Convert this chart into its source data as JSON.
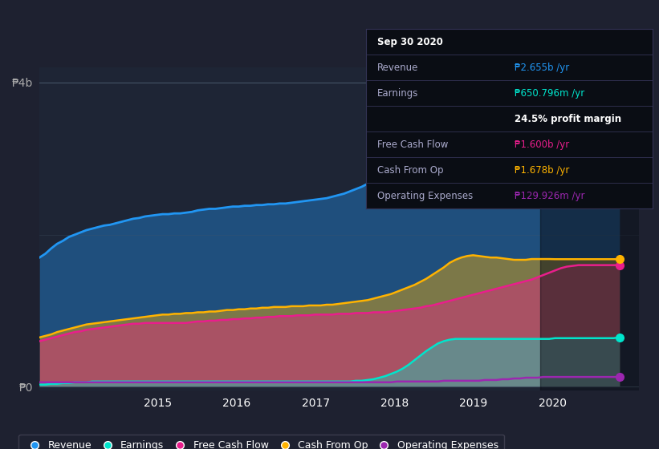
{
  "bg_color": "#1e2130",
  "plot_bg": "#1e2535",
  "ylim": [
    -0.05,
    4.2
  ],
  "ylabel_4b": "₱4b",
  "ylabel_0": "₱0",
  "x_labels": [
    "2015",
    "2016",
    "2017",
    "2018",
    "2019",
    "2020"
  ],
  "series_colors": {
    "revenue": "#2196f3",
    "earnings": "#00e5cc",
    "free_cash_flow": "#e91e8c",
    "cash_from_op": "#ffb300",
    "operating_expenses": "#9c27b0"
  },
  "legend_labels": [
    "Revenue",
    "Earnings",
    "Free Cash Flow",
    "Cash From Op",
    "Operating Expenses"
  ],
  "tooltip_lines": [
    {
      "label": "Sep 30 2020",
      "value": "",
      "label_color": "#ffffff",
      "value_color": "#ffffff",
      "bold": true
    },
    {
      "label": "Revenue",
      "value": "₱2.655b /yr",
      "label_color": "#aaaacc",
      "value_color": "#2196f3",
      "bold": false
    },
    {
      "label": "Earnings",
      "value": "₱650.796m /yr",
      "label_color": "#aaaacc",
      "value_color": "#00e5cc",
      "bold": false
    },
    {
      "label": "",
      "value": "24.5% profit margin",
      "label_color": "#aaaacc",
      "value_color": "#ffffff",
      "bold": true
    },
    {
      "label": "Free Cash Flow",
      "value": "₱1.600b /yr",
      "label_color": "#aaaacc",
      "value_color": "#e91e8c",
      "bold": false
    },
    {
      "label": "Cash From Op",
      "value": "₱1.678b /yr",
      "label_color": "#aaaacc",
      "value_color": "#ffb300",
      "bold": false
    },
    {
      "label": "Operating Expenses",
      "value": "₱129.926m /yr",
      "label_color": "#aaaacc",
      "value_color": "#9c27b0",
      "bold": false
    }
  ],
  "t": [
    0,
    1,
    2,
    3,
    4,
    5,
    6,
    7,
    8,
    9,
    10,
    11,
    12,
    13,
    14,
    15,
    16,
    17,
    18,
    19,
    20,
    21,
    22,
    23,
    24,
    25,
    26,
    27,
    28,
    29,
    30,
    31,
    32,
    33,
    34,
    35,
    36,
    37,
    38,
    39,
    40,
    41,
    42,
    43,
    44,
    45,
    46,
    47,
    48,
    49,
    50,
    51,
    52,
    53,
    54,
    55,
    56,
    57,
    58,
    59,
    60,
    61,
    62,
    63,
    64,
    65,
    66,
    67,
    68,
    69,
    70,
    71,
    72,
    73,
    74,
    75,
    76,
    77,
    78,
    79,
    80,
    81,
    82,
    83,
    84,
    85,
    86,
    87,
    88,
    89,
    90,
    91,
    92,
    93,
    94,
    95,
    96,
    97,
    98,
    99
  ],
  "revenue": [
    1.7,
    1.75,
    1.82,
    1.88,
    1.92,
    1.97,
    2.0,
    2.03,
    2.06,
    2.08,
    2.1,
    2.12,
    2.13,
    2.15,
    2.17,
    2.19,
    2.21,
    2.22,
    2.24,
    2.25,
    2.26,
    2.27,
    2.27,
    2.28,
    2.28,
    2.29,
    2.3,
    2.32,
    2.33,
    2.34,
    2.34,
    2.35,
    2.36,
    2.37,
    2.37,
    2.38,
    2.38,
    2.39,
    2.39,
    2.4,
    2.4,
    2.41,
    2.41,
    2.42,
    2.43,
    2.44,
    2.45,
    2.46,
    2.47,
    2.48,
    2.5,
    2.52,
    2.54,
    2.57,
    2.6,
    2.63,
    2.67,
    2.72,
    2.78,
    2.84,
    2.9,
    2.97,
    3.03,
    3.08,
    3.13,
    3.17,
    3.2,
    3.23,
    3.25,
    3.26,
    3.27,
    3.28,
    3.28,
    3.27,
    3.26,
    3.24,
    3.22,
    3.19,
    3.16,
    3.12,
    3.08,
    3.04,
    3.0,
    2.96,
    2.92,
    2.88,
    2.84,
    2.8,
    2.77,
    2.74,
    2.72,
    2.7,
    2.68,
    2.66,
    2.65,
    2.655,
    2.655,
    2.655,
    2.655,
    2.655
  ],
  "earnings": [
    0.03,
    0.03,
    0.04,
    0.04,
    0.05,
    0.05,
    0.06,
    0.06,
    0.06,
    0.07,
    0.07,
    0.07,
    0.07,
    0.07,
    0.07,
    0.07,
    0.07,
    0.07,
    0.07,
    0.07,
    0.07,
    0.07,
    0.07,
    0.07,
    0.07,
    0.07,
    0.07,
    0.07,
    0.07,
    0.07,
    0.07,
    0.07,
    0.07,
    0.07,
    0.07,
    0.07,
    0.07,
    0.07,
    0.07,
    0.07,
    0.07,
    0.07,
    0.07,
    0.07,
    0.07,
    0.07,
    0.07,
    0.07,
    0.07,
    0.07,
    0.07,
    0.07,
    0.07,
    0.07,
    0.08,
    0.08,
    0.09,
    0.1,
    0.12,
    0.14,
    0.17,
    0.2,
    0.24,
    0.29,
    0.35,
    0.41,
    0.47,
    0.52,
    0.57,
    0.6,
    0.62,
    0.63,
    0.63,
    0.63,
    0.63,
    0.63,
    0.63,
    0.63,
    0.63,
    0.63,
    0.63,
    0.63,
    0.63,
    0.63,
    0.63,
    0.63,
    0.63,
    0.63,
    0.64,
    0.64,
    0.64,
    0.64,
    0.64,
    0.64,
    0.64,
    0.64,
    0.64,
    0.64,
    0.64,
    0.6508
  ],
  "free_cash_flow": [
    0.6,
    0.62,
    0.64,
    0.66,
    0.68,
    0.7,
    0.72,
    0.73,
    0.75,
    0.76,
    0.77,
    0.78,
    0.79,
    0.8,
    0.81,
    0.82,
    0.83,
    0.83,
    0.84,
    0.84,
    0.84,
    0.84,
    0.84,
    0.84,
    0.84,
    0.84,
    0.85,
    0.86,
    0.86,
    0.87,
    0.87,
    0.88,
    0.88,
    0.89,
    0.89,
    0.9,
    0.9,
    0.91,
    0.91,
    0.92,
    0.92,
    0.93,
    0.93,
    0.93,
    0.94,
    0.94,
    0.94,
    0.95,
    0.95,
    0.95,
    0.95,
    0.96,
    0.96,
    0.96,
    0.97,
    0.97,
    0.97,
    0.98,
    0.98,
    0.98,
    0.99,
    1.0,
    1.01,
    1.02,
    1.03,
    1.04,
    1.06,
    1.07,
    1.09,
    1.11,
    1.13,
    1.15,
    1.17,
    1.19,
    1.21,
    1.23,
    1.25,
    1.27,
    1.29,
    1.31,
    1.33,
    1.35,
    1.37,
    1.39,
    1.41,
    1.44,
    1.47,
    1.5,
    1.53,
    1.56,
    1.58,
    1.59,
    1.6,
    1.6,
    1.6,
    1.6,
    1.6,
    1.6,
    1.6,
    1.6
  ],
  "cash_from_op": [
    0.65,
    0.67,
    0.69,
    0.72,
    0.74,
    0.76,
    0.78,
    0.8,
    0.82,
    0.83,
    0.84,
    0.85,
    0.86,
    0.87,
    0.88,
    0.89,
    0.9,
    0.91,
    0.92,
    0.93,
    0.94,
    0.95,
    0.95,
    0.96,
    0.96,
    0.97,
    0.97,
    0.98,
    0.98,
    0.99,
    0.99,
    1.0,
    1.01,
    1.01,
    1.02,
    1.02,
    1.03,
    1.03,
    1.04,
    1.04,
    1.05,
    1.05,
    1.05,
    1.06,
    1.06,
    1.06,
    1.07,
    1.07,
    1.07,
    1.08,
    1.08,
    1.09,
    1.1,
    1.11,
    1.12,
    1.13,
    1.14,
    1.16,
    1.18,
    1.2,
    1.22,
    1.25,
    1.28,
    1.31,
    1.34,
    1.38,
    1.42,
    1.47,
    1.52,
    1.57,
    1.63,
    1.67,
    1.7,
    1.72,
    1.73,
    1.72,
    1.71,
    1.7,
    1.7,
    1.69,
    1.68,
    1.67,
    1.67,
    1.67,
    1.68,
    1.68,
    1.68,
    1.68,
    1.678,
    1.678,
    1.678,
    1.678,
    1.678,
    1.678,
    1.678,
    1.678,
    1.678,
    1.678,
    1.678,
    1.678
  ],
  "operating_expenses": [
    0.06,
    0.06,
    0.06,
    0.06,
    0.06,
    0.06,
    0.06,
    0.06,
    0.06,
    0.06,
    0.06,
    0.06,
    0.06,
    0.06,
    0.06,
    0.06,
    0.06,
    0.06,
    0.06,
    0.06,
    0.06,
    0.06,
    0.06,
    0.06,
    0.06,
    0.06,
    0.06,
    0.06,
    0.06,
    0.06,
    0.06,
    0.06,
    0.06,
    0.06,
    0.06,
    0.06,
    0.06,
    0.06,
    0.06,
    0.06,
    0.06,
    0.06,
    0.06,
    0.06,
    0.06,
    0.06,
    0.06,
    0.06,
    0.06,
    0.06,
    0.06,
    0.06,
    0.06,
    0.06,
    0.06,
    0.06,
    0.06,
    0.06,
    0.06,
    0.06,
    0.06,
    0.07,
    0.07,
    0.07,
    0.07,
    0.07,
    0.07,
    0.07,
    0.07,
    0.08,
    0.08,
    0.08,
    0.08,
    0.08,
    0.08,
    0.08,
    0.09,
    0.09,
    0.09,
    0.1,
    0.1,
    0.11,
    0.11,
    0.12,
    0.12,
    0.12,
    0.13,
    0.13,
    0.13,
    0.13,
    0.13,
    0.13,
    0.13,
    0.13,
    0.13,
    0.13,
    0.13,
    0.13,
    0.13,
    0.13
  ]
}
